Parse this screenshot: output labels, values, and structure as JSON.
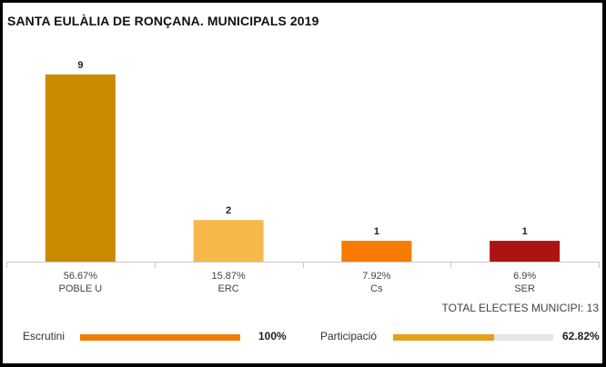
{
  "title": "SANTA EULÀLIA DE RONÇANA. MUNICIPALS 2019",
  "chart_data": {
    "type": "bar",
    "categories": [
      "POBLE U",
      "ERC",
      "Cs",
      "SER"
    ],
    "values": [
      9,
      2,
      1,
      1
    ],
    "percentages": [
      "56.67%",
      "15.87%",
      "7.92%",
      "6.9%"
    ],
    "colors": [
      "#c98a00",
      "#f7b84b",
      "#f77b00",
      "#ac1414"
    ],
    "ylim": [
      0,
      9
    ]
  },
  "total_label": "TOTAL ELECTES MUNICIPI: 13",
  "escrutini": {
    "label": "Escrutini",
    "value": "100%",
    "fraction": 1.0,
    "color": "#f07d00"
  },
  "participacio": {
    "label": "Participació",
    "value": "62.82%",
    "fraction": 0.6282,
    "color": "#e3a11a"
  }
}
